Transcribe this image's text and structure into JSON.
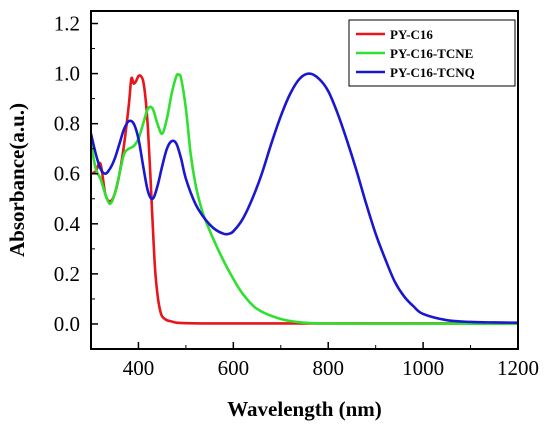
{
  "chart_data": {
    "type": "line",
    "xlabel": "Wavelength (nm)",
    "ylabel": "Absorbance(a.u.)",
    "xlim": [
      300,
      1200
    ],
    "ylim": [
      -0.1,
      1.25
    ],
    "x_ticks": [
      400,
      600,
      800,
      1000,
      1200
    ],
    "x_tick_labels": [
      "400",
      "600",
      "800",
      "1000",
      "1200"
    ],
    "y_ticks": [
      0.0,
      0.2,
      0.4,
      0.6,
      0.8,
      1.0,
      1.2
    ],
    "y_tick_labels": [
      "0.0",
      "0.2",
      "0.4",
      "0.6",
      "0.8",
      "1.0",
      "1.2"
    ],
    "grid": false,
    "legend_position": "top-right",
    "series": [
      {
        "name": "PY-C16",
        "color": "#e8161b",
        "x": [
          300,
          310,
          320,
          330,
          340,
          350,
          360,
          370,
          380,
          385,
          390,
          395,
          400,
          405,
          410,
          415,
          420,
          425,
          430,
          435,
          440,
          445,
          450,
          460,
          470,
          480,
          500,
          550,
          600,
          700,
          800,
          900,
          1000,
          1100,
          1200
        ],
        "y": [
          0.6,
          0.61,
          0.64,
          0.52,
          0.49,
          0.52,
          0.6,
          0.72,
          0.88,
          0.98,
          0.96,
          0.97,
          0.99,
          0.99,
          0.97,
          0.9,
          0.78,
          0.6,
          0.4,
          0.22,
          0.12,
          0.06,
          0.03,
          0.015,
          0.01,
          0.005,
          0.003,
          0.002,
          0.002,
          0.002,
          0.002,
          0.002,
          0.002,
          0.002,
          0.002
        ]
      },
      {
        "name": "PY-C16-TCNE",
        "color": "#2fe02f",
        "x": [
          300,
          310,
          320,
          330,
          340,
          350,
          360,
          370,
          380,
          390,
          400,
          410,
          420,
          430,
          440,
          450,
          460,
          470,
          480,
          485,
          490,
          500,
          510,
          520,
          530,
          540,
          560,
          580,
          600,
          620,
          650,
          700,
          750,
          800,
          900,
          1000,
          1100,
          1200
        ],
        "y": [
          0.72,
          0.62,
          0.58,
          0.52,
          0.48,
          0.52,
          0.6,
          0.68,
          0.7,
          0.71,
          0.74,
          0.8,
          0.86,
          0.86,
          0.8,
          0.76,
          0.82,
          0.92,
          0.99,
          0.995,
          0.98,
          0.86,
          0.68,
          0.56,
          0.48,
          0.42,
          0.33,
          0.25,
          0.18,
          0.12,
          0.06,
          0.02,
          0.005,
          0.002,
          0.001,
          0.001,
          0.001,
          0.001
        ]
      },
      {
        "name": "PY-C16-TCNQ",
        "color": "#1a17d0",
        "x": [
          300,
          310,
          320,
          330,
          340,
          350,
          360,
          370,
          380,
          390,
          400,
          410,
          420,
          430,
          440,
          450,
          460,
          470,
          480,
          490,
          500,
          520,
          540,
          560,
          580,
          590,
          600,
          620,
          640,
          660,
          680,
          700,
          720,
          740,
          760,
          780,
          800,
          820,
          840,
          860,
          880,
          900,
          920,
          940,
          960,
          980,
          1000,
          1050,
          1100,
          1150,
          1200
        ],
        "y": [
          0.76,
          0.68,
          0.62,
          0.6,
          0.62,
          0.66,
          0.72,
          0.78,
          0.81,
          0.8,
          0.74,
          0.63,
          0.53,
          0.5,
          0.55,
          0.63,
          0.7,
          0.73,
          0.72,
          0.66,
          0.58,
          0.48,
          0.42,
          0.38,
          0.36,
          0.36,
          0.37,
          0.42,
          0.5,
          0.6,
          0.72,
          0.83,
          0.92,
          0.98,
          1.0,
          0.98,
          0.93,
          0.84,
          0.73,
          0.61,
          0.48,
          0.36,
          0.26,
          0.17,
          0.11,
          0.07,
          0.04,
          0.015,
          0.008,
          0.006,
          0.005
        ]
      }
    ]
  }
}
